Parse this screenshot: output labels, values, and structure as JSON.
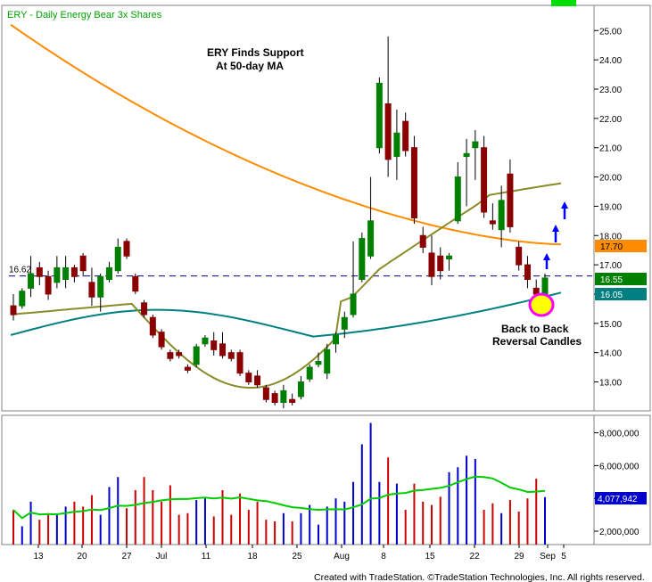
{
  "header": {
    "title": "ERY - Daily  Energy Bear 3x Shares"
  },
  "annotations": {
    "support_line1": "ERY Finds Support",
    "support_line2": "At 50-day MA",
    "reversal_line1": "Back to Back",
    "reversal_line2": "Reversal Candles"
  },
  "footer": {
    "text": "Created with TradeStation. ©TradeStation Technologies, Inc. All rights reserved."
  },
  "colors": {
    "up": "#008000",
    "down": "#8b0000",
    "ma200": "#ff8c00",
    "ma20": "#8b8b2a",
    "ma50": "#008080",
    "support_line": "#00008b",
    "volume_up": "#0000cc",
    "volume_down": "#cc0000",
    "volume_ma": "#00cc00",
    "arrow": "#0000ff",
    "highlight_fill": "#ffff00",
    "highlight_ring": "#ff00ff"
  },
  "chart_data": {
    "type": "candlestick",
    "title": "ERY - Daily  Energy Bear 3x Shares",
    "x_tick_labels": [
      "13",
      "20",
      "27",
      "Jul",
      "11",
      "18",
      "25",
      "Aug",
      "8",
      "15",
      "22",
      "29",
      "Sep",
      "5"
    ],
    "price_axis": {
      "ylim": [
        12.0,
        25.5
      ],
      "tick_labels": [
        "13.00",
        "14.00",
        "15.00",
        "16.00",
        "17.00",
        "18.00",
        "19.00",
        "20.00",
        "21.00",
        "22.00",
        "23.00",
        "24.00",
        "25.00"
      ]
    },
    "volume_axis": {
      "ylim": [
        900000,
        9000000
      ],
      "tick_labels": [
        "2,000,000",
        "4,000,000",
        "6,000,000",
        "8,000,000"
      ]
    },
    "support_level": {
      "value": 16.62,
      "label": "16.62"
    },
    "price_badges": [
      {
        "label": "17.70",
        "color": "#ff8c00",
        "text_color": "#000000",
        "series": "200-day MA"
      },
      {
        "label": "16.55",
        "color": "#008000",
        "text_color": "#ffffff",
        "series": "Last close"
      },
      {
        "label": "16.05",
        "color": "#008080",
        "text_color": "#ffffff",
        "series": "50-day MA"
      }
    ],
    "volume_badge": {
      "label": "4,077,942",
      "color": "#0000cc",
      "text_color": "#ffffff"
    },
    "candles": [
      {
        "o": 15.6,
        "h": 16.0,
        "l": 15.1,
        "c": 15.3
      },
      {
        "o": 15.6,
        "h": 16.2,
        "l": 15.5,
        "c": 16.1
      },
      {
        "o": 16.2,
        "h": 17.3,
        "l": 15.9,
        "c": 16.7
      },
      {
        "o": 16.9,
        "h": 17.1,
        "l": 16.3,
        "c": 16.6
      },
      {
        "o": 16.6,
        "h": 16.8,
        "l": 15.8,
        "c": 16.0
      },
      {
        "o": 16.4,
        "h": 17.3,
        "l": 16.2,
        "c": 16.9
      },
      {
        "o": 16.5,
        "h": 17.3,
        "l": 16.2,
        "c": 16.9
      },
      {
        "o": 16.9,
        "h": 17.0,
        "l": 16.4,
        "c": 16.6
      },
      {
        "o": 17.3,
        "h": 17.4,
        "l": 16.6,
        "c": 16.8
      },
      {
        "o": 16.4,
        "h": 16.9,
        "l": 15.6,
        "c": 15.9
      },
      {
        "o": 15.9,
        "h": 16.7,
        "l": 15.4,
        "c": 16.6
      },
      {
        "o": 16.5,
        "h": 17.1,
        "l": 16.4,
        "c": 16.9
      },
      {
        "o": 16.8,
        "h": 17.9,
        "l": 16.7,
        "c": 17.6
      },
      {
        "o": 17.8,
        "h": 17.9,
        "l": 17.2,
        "c": 17.3
      },
      {
        "o": 16.6,
        "h": 16.7,
        "l": 16.0,
        "c": 16.1
      },
      {
        "o": 15.7,
        "h": 15.8,
        "l": 15.2,
        "c": 15.3
      },
      {
        "o": 15.2,
        "h": 15.3,
        "l": 14.5,
        "c": 14.6
      },
      {
        "o": 14.7,
        "h": 14.8,
        "l": 14.1,
        "c": 14.2
      },
      {
        "o": 14.0,
        "h": 14.1,
        "l": 13.7,
        "c": 13.8
      },
      {
        "o": 14.0,
        "h": 14.1,
        "l": 13.8,
        "c": 13.9
      },
      {
        "o": 13.5,
        "h": 13.6,
        "l": 13.3,
        "c": 13.4
      },
      {
        "o": 13.6,
        "h": 14.3,
        "l": 13.5,
        "c": 14.2
      },
      {
        "o": 14.3,
        "h": 14.6,
        "l": 14.2,
        "c": 14.5
      },
      {
        "o": 14.4,
        "h": 14.7,
        "l": 13.9,
        "c": 14.1
      },
      {
        "o": 14.3,
        "h": 14.7,
        "l": 13.8,
        "c": 13.9
      },
      {
        "o": 14.0,
        "h": 14.1,
        "l": 13.7,
        "c": 13.8
      },
      {
        "o": 14.0,
        "h": 14.1,
        "l": 13.2,
        "c": 13.3
      },
      {
        "o": 13.3,
        "h": 13.4,
        "l": 12.9,
        "c": 13.0
      },
      {
        "o": 13.2,
        "h": 13.4,
        "l": 12.8,
        "c": 12.9
      },
      {
        "o": 12.8,
        "h": 12.9,
        "l": 12.3,
        "c": 12.4
      },
      {
        "o": 12.6,
        "h": 12.7,
        "l": 12.2,
        "c": 12.3
      },
      {
        "o": 12.3,
        "h": 12.9,
        "l": 12.1,
        "c": 12.7
      },
      {
        "o": 12.4,
        "h": 12.6,
        "l": 12.2,
        "c": 12.3
      },
      {
        "o": 12.5,
        "h": 13.2,
        "l": 12.4,
        "c": 13.0
      },
      {
        "o": 13.1,
        "h": 13.6,
        "l": 13.0,
        "c": 13.5
      },
      {
        "o": 13.6,
        "h": 14.0,
        "l": 13.5,
        "c": 13.7
      },
      {
        "o": 13.3,
        "h": 14.3,
        "l": 13.1,
        "c": 14.1
      },
      {
        "o": 14.3,
        "h": 14.7,
        "l": 14.0,
        "c": 14.6
      },
      {
        "o": 14.8,
        "h": 15.4,
        "l": 14.5,
        "c": 15.2
      },
      {
        "o": 15.3,
        "h": 17.8,
        "l": 15.2,
        "c": 16.0
      },
      {
        "o": 16.5,
        "h": 18.1,
        "l": 16.4,
        "c": 17.9
      },
      {
        "o": 17.3,
        "h": 20.0,
        "l": 17.2,
        "c": 18.5
      },
      {
        "o": 21.0,
        "h": 23.4,
        "l": 20.8,
        "c": 23.2
      },
      {
        "o": 22.5,
        "h": 24.8,
        "l": 20.0,
        "c": 20.6
      },
      {
        "o": 20.7,
        "h": 22.3,
        "l": 19.9,
        "c": 21.5
      },
      {
        "o": 21.9,
        "h": 22.2,
        "l": 20.7,
        "c": 20.9
      },
      {
        "o": 21.0,
        "h": 21.4,
        "l": 18.4,
        "c": 18.6
      },
      {
        "o": 18.0,
        "h": 18.3,
        "l": 17.4,
        "c": 17.6
      },
      {
        "o": 17.4,
        "h": 18.0,
        "l": 16.3,
        "c": 16.6
      },
      {
        "o": 17.3,
        "h": 17.6,
        "l": 16.5,
        "c": 16.8
      },
      {
        "o": 17.2,
        "h": 17.4,
        "l": 16.8,
        "c": 17.3
      },
      {
        "o": 18.5,
        "h": 20.5,
        "l": 18.4,
        "c": 20.0
      },
      {
        "o": 20.7,
        "h": 21.3,
        "l": 19.0,
        "c": 20.8
      },
      {
        "o": 21.0,
        "h": 21.6,
        "l": 19.9,
        "c": 21.2
      },
      {
        "o": 21.0,
        "h": 21.4,
        "l": 18.6,
        "c": 18.8
      },
      {
        "o": 18.5,
        "h": 19.1,
        "l": 18.2,
        "c": 18.4
      },
      {
        "o": 18.2,
        "h": 19.7,
        "l": 17.6,
        "c": 19.2
      },
      {
        "o": 20.1,
        "h": 20.6,
        "l": 18.1,
        "c": 18.3
      },
      {
        "o": 17.6,
        "h": 17.8,
        "l": 16.8,
        "c": 17.0
      },
      {
        "o": 17.0,
        "h": 17.3,
        "l": 16.2,
        "c": 16.5
      },
      {
        "o": 16.2,
        "h": 16.5,
        "l": 15.9,
        "c": 16.0
      },
      {
        "o": 16.0,
        "h": 16.7,
        "l": 15.9,
        "c": 16.55
      }
    ],
    "volume": [
      3300000,
      2300000,
      3800000,
      2700000,
      3100000,
      3000000,
      3500000,
      3800000,
      3500000,
      4200000,
      3000000,
      4700000,
      5300000,
      3400000,
      4500000,
      5300000,
      4500000,
      3800000,
      4800000,
      3000000,
      3100000,
      3900000,
      4000000,
      2900000,
      4500000,
      3000000,
      4300000,
      3300000,
      3800000,
      2700000,
      2600000,
      3100000,
      2600000,
      3100000,
      3600000,
      2400000,
      3500000,
      4000000,
      3800000,
      5000000,
      7300000,
      8600000,
      5000000,
      6500000,
      4900000,
      3300000,
      4900000,
      3800000,
      3600000,
      4100000,
      5600000,
      5900000,
      6600000,
      6400000,
      3300000,
      3700000,
      3100000,
      3900000,
      3200000,
      4000000,
      5200000,
      4077942
    ],
    "series": [
      {
        "name": "200-day MA",
        "values": [
          25.2,
          17.7
        ]
      },
      {
        "name": "50-day MA",
        "values": [
          14.6,
          16.05
        ]
      },
      {
        "name": "20-day MA",
        "values": [
          15.3,
          17.55
        ]
      }
    ]
  }
}
